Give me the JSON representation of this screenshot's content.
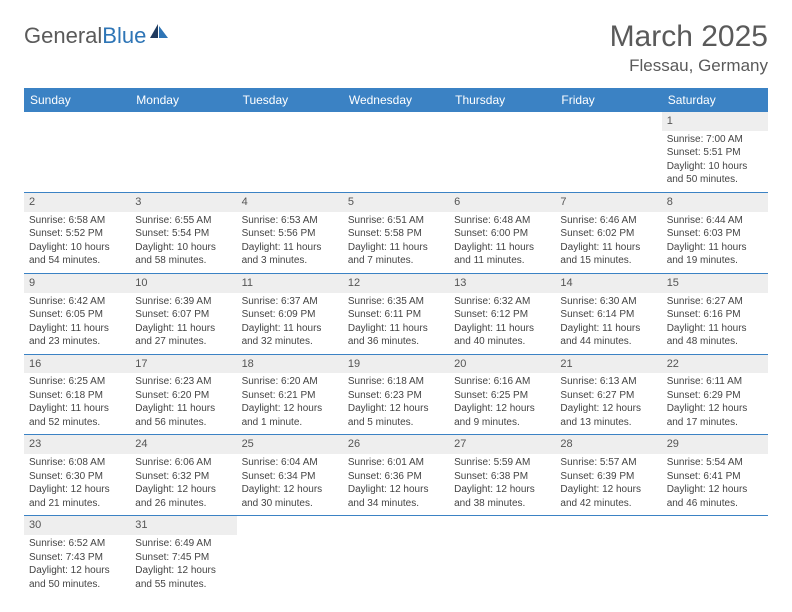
{
  "logo": {
    "text1": "General",
    "text2": "Blue"
  },
  "title": "March 2025",
  "location": "Flessau, Germany",
  "colors": {
    "header_bg": "#3b82c4",
    "header_fg": "#ffffff",
    "daynum_bg": "#eeeeee",
    "text": "#444444",
    "title": "#5a5a5a",
    "border": "#3b82c4"
  },
  "weekdays": [
    "Sunday",
    "Monday",
    "Tuesday",
    "Wednesday",
    "Thursday",
    "Friday",
    "Saturday"
  ],
  "weeks": [
    [
      null,
      null,
      null,
      null,
      null,
      null,
      {
        "n": "1",
        "sr": "Sunrise: 7:00 AM",
        "ss": "Sunset: 5:51 PM",
        "dl": "Daylight: 10 hours and 50 minutes."
      }
    ],
    [
      {
        "n": "2",
        "sr": "Sunrise: 6:58 AM",
        "ss": "Sunset: 5:52 PM",
        "dl": "Daylight: 10 hours and 54 minutes."
      },
      {
        "n": "3",
        "sr": "Sunrise: 6:55 AM",
        "ss": "Sunset: 5:54 PM",
        "dl": "Daylight: 10 hours and 58 minutes."
      },
      {
        "n": "4",
        "sr": "Sunrise: 6:53 AM",
        "ss": "Sunset: 5:56 PM",
        "dl": "Daylight: 11 hours and 3 minutes."
      },
      {
        "n": "5",
        "sr": "Sunrise: 6:51 AM",
        "ss": "Sunset: 5:58 PM",
        "dl": "Daylight: 11 hours and 7 minutes."
      },
      {
        "n": "6",
        "sr": "Sunrise: 6:48 AM",
        "ss": "Sunset: 6:00 PM",
        "dl": "Daylight: 11 hours and 11 minutes."
      },
      {
        "n": "7",
        "sr": "Sunrise: 6:46 AM",
        "ss": "Sunset: 6:02 PM",
        "dl": "Daylight: 11 hours and 15 minutes."
      },
      {
        "n": "8",
        "sr": "Sunrise: 6:44 AM",
        "ss": "Sunset: 6:03 PM",
        "dl": "Daylight: 11 hours and 19 minutes."
      }
    ],
    [
      {
        "n": "9",
        "sr": "Sunrise: 6:42 AM",
        "ss": "Sunset: 6:05 PM",
        "dl": "Daylight: 11 hours and 23 minutes."
      },
      {
        "n": "10",
        "sr": "Sunrise: 6:39 AM",
        "ss": "Sunset: 6:07 PM",
        "dl": "Daylight: 11 hours and 27 minutes."
      },
      {
        "n": "11",
        "sr": "Sunrise: 6:37 AM",
        "ss": "Sunset: 6:09 PM",
        "dl": "Daylight: 11 hours and 32 minutes."
      },
      {
        "n": "12",
        "sr": "Sunrise: 6:35 AM",
        "ss": "Sunset: 6:11 PM",
        "dl": "Daylight: 11 hours and 36 minutes."
      },
      {
        "n": "13",
        "sr": "Sunrise: 6:32 AM",
        "ss": "Sunset: 6:12 PM",
        "dl": "Daylight: 11 hours and 40 minutes."
      },
      {
        "n": "14",
        "sr": "Sunrise: 6:30 AM",
        "ss": "Sunset: 6:14 PM",
        "dl": "Daylight: 11 hours and 44 minutes."
      },
      {
        "n": "15",
        "sr": "Sunrise: 6:27 AM",
        "ss": "Sunset: 6:16 PM",
        "dl": "Daylight: 11 hours and 48 minutes."
      }
    ],
    [
      {
        "n": "16",
        "sr": "Sunrise: 6:25 AM",
        "ss": "Sunset: 6:18 PM",
        "dl": "Daylight: 11 hours and 52 minutes."
      },
      {
        "n": "17",
        "sr": "Sunrise: 6:23 AM",
        "ss": "Sunset: 6:20 PM",
        "dl": "Daylight: 11 hours and 56 minutes."
      },
      {
        "n": "18",
        "sr": "Sunrise: 6:20 AM",
        "ss": "Sunset: 6:21 PM",
        "dl": "Daylight: 12 hours and 1 minute."
      },
      {
        "n": "19",
        "sr": "Sunrise: 6:18 AM",
        "ss": "Sunset: 6:23 PM",
        "dl": "Daylight: 12 hours and 5 minutes."
      },
      {
        "n": "20",
        "sr": "Sunrise: 6:16 AM",
        "ss": "Sunset: 6:25 PM",
        "dl": "Daylight: 12 hours and 9 minutes."
      },
      {
        "n": "21",
        "sr": "Sunrise: 6:13 AM",
        "ss": "Sunset: 6:27 PM",
        "dl": "Daylight: 12 hours and 13 minutes."
      },
      {
        "n": "22",
        "sr": "Sunrise: 6:11 AM",
        "ss": "Sunset: 6:29 PM",
        "dl": "Daylight: 12 hours and 17 minutes."
      }
    ],
    [
      {
        "n": "23",
        "sr": "Sunrise: 6:08 AM",
        "ss": "Sunset: 6:30 PM",
        "dl": "Daylight: 12 hours and 21 minutes."
      },
      {
        "n": "24",
        "sr": "Sunrise: 6:06 AM",
        "ss": "Sunset: 6:32 PM",
        "dl": "Daylight: 12 hours and 26 minutes."
      },
      {
        "n": "25",
        "sr": "Sunrise: 6:04 AM",
        "ss": "Sunset: 6:34 PM",
        "dl": "Daylight: 12 hours and 30 minutes."
      },
      {
        "n": "26",
        "sr": "Sunrise: 6:01 AM",
        "ss": "Sunset: 6:36 PM",
        "dl": "Daylight: 12 hours and 34 minutes."
      },
      {
        "n": "27",
        "sr": "Sunrise: 5:59 AM",
        "ss": "Sunset: 6:38 PM",
        "dl": "Daylight: 12 hours and 38 minutes."
      },
      {
        "n": "28",
        "sr": "Sunrise: 5:57 AM",
        "ss": "Sunset: 6:39 PM",
        "dl": "Daylight: 12 hours and 42 minutes."
      },
      {
        "n": "29",
        "sr": "Sunrise: 5:54 AM",
        "ss": "Sunset: 6:41 PM",
        "dl": "Daylight: 12 hours and 46 minutes."
      }
    ],
    [
      {
        "n": "30",
        "sr": "Sunrise: 6:52 AM",
        "ss": "Sunset: 7:43 PM",
        "dl": "Daylight: 12 hours and 50 minutes."
      },
      {
        "n": "31",
        "sr": "Sunrise: 6:49 AM",
        "ss": "Sunset: 7:45 PM",
        "dl": "Daylight: 12 hours and 55 minutes."
      },
      null,
      null,
      null,
      null,
      null
    ]
  ]
}
